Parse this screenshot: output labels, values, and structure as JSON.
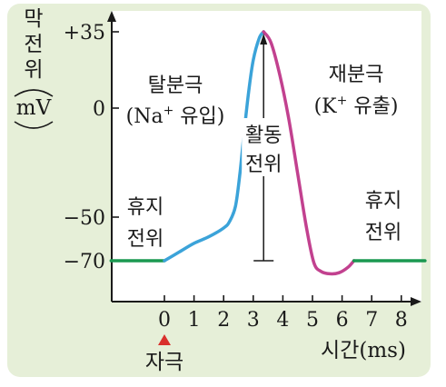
{
  "chart_data": {
    "type": "line",
    "ylabel_chars": [
      "막",
      "전",
      "위"
    ],
    "ylabel_unit": "mV",
    "xlabel": "시간(ms)",
    "xlim": [
      -1.8,
      8.8
    ],
    "ylim": [
      -85,
      45
    ],
    "x_ticks": [
      {
        "value": 0,
        "label": "0"
      },
      {
        "value": 1,
        "label": "1"
      },
      {
        "value": 2,
        "label": "2"
      },
      {
        "value": 3,
        "label": "3"
      },
      {
        "value": 4,
        "label": "4"
      },
      {
        "value": 5,
        "label": "5"
      },
      {
        "value": 6,
        "label": "6"
      },
      {
        "value": 7,
        "label": "7"
      },
      {
        "value": 8,
        "label": "8"
      }
    ],
    "y_ticks": [
      {
        "value": 35,
        "label": "+35"
      },
      {
        "value": 0,
        "label": "0"
      },
      {
        "value": -50,
        "label": "−50"
      },
      {
        "value": -70,
        "label": "−70"
      }
    ],
    "segments": [
      {
        "name": "resting-left",
        "color": "#1a9850",
        "points": [
          [
            -1.8,
            -70
          ],
          [
            0,
            -70
          ]
        ]
      },
      {
        "name": "depolarization",
        "color": "#3ba3d9",
        "points": [
          [
            0,
            -70
          ],
          [
            0.5,
            -66
          ],
          [
            1,
            -62
          ],
          [
            1.5,
            -59
          ],
          [
            2,
            -55
          ],
          [
            2.2,
            -52
          ],
          [
            2.4,
            -45
          ],
          [
            2.55,
            -30
          ],
          [
            2.7,
            -10
          ],
          [
            2.85,
            8
          ],
          [
            3.0,
            22
          ],
          [
            3.2,
            32
          ],
          [
            3.35,
            35
          ]
        ]
      },
      {
        "name": "repolarization",
        "color": "#c2418f",
        "points": [
          [
            3.35,
            35
          ],
          [
            3.6,
            30
          ],
          [
            3.9,
            15
          ],
          [
            4.2,
            -5
          ],
          [
            4.5,
            -30
          ],
          [
            4.8,
            -55
          ],
          [
            5.05,
            -71
          ],
          [
            5.3,
            -75
          ],
          [
            5.6,
            -76
          ],
          [
            5.9,
            -75.5
          ],
          [
            6.2,
            -73
          ],
          [
            6.4,
            -70
          ]
        ]
      },
      {
        "name": "resting-right",
        "color": "#1a9850",
        "points": [
          [
            6.4,
            -70
          ],
          [
            8.8,
            -70
          ]
        ]
      }
    ],
    "action_potential_arrow": {
      "x": 3.35,
      "y_top": 35,
      "y_bottom": -70,
      "label_lines": [
        "활동",
        "전위"
      ]
    },
    "annotations": {
      "depolarization_lines": [
        "탈분극",
        "(Na",
        "+",
        " 유입)"
      ],
      "repolarization_lines": [
        "재분극",
        "(K",
        "+",
        " 유출)"
      ],
      "resting_left_lines": [
        "휴지",
        "전위"
      ],
      "resting_right_lines": [
        "휴지",
        "전위"
      ],
      "stimulus_label": "자극",
      "stimulus_x": 0
    },
    "colors": {
      "frame_bg": "#e6efd8",
      "plot_bg": "#ffffff",
      "axis": "#1a1a1a",
      "stimulus_marker": "#d9302c"
    }
  }
}
